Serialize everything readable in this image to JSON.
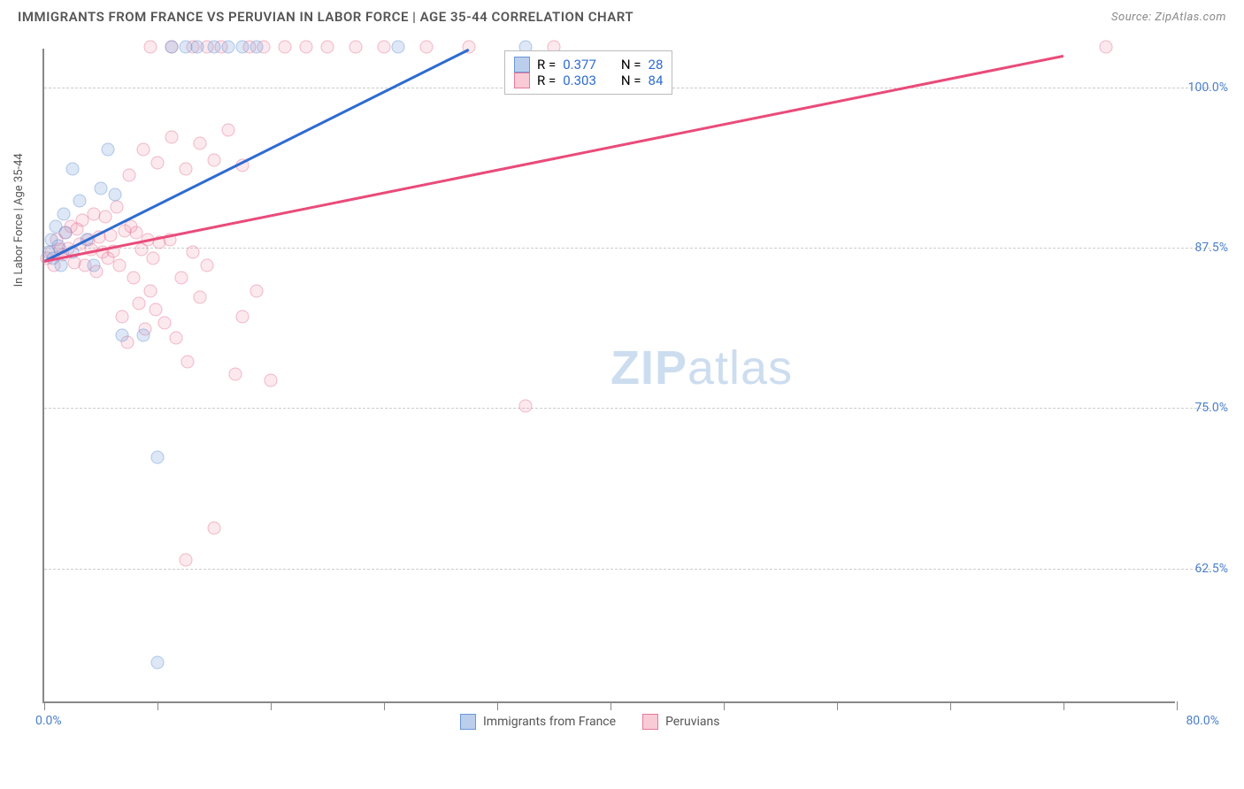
{
  "header": {
    "title": "IMMIGRANTS FROM FRANCE VS PERUVIAN IN LABOR FORCE | AGE 35-44 CORRELATION CHART",
    "source": "Source: ZipAtlas.com"
  },
  "chart": {
    "type": "scatter",
    "ylabel": "In Labor Force | Age 35-44",
    "x_min": 0,
    "x_max": 80,
    "y_min": 52,
    "y_max": 103,
    "x_start_label": "0.0%",
    "x_end_label": "80.0%",
    "grid_y": [
      {
        "v": 62.5,
        "label": "62.5%"
      },
      {
        "v": 75.0,
        "label": "75.0%"
      },
      {
        "v": 87.5,
        "label": "87.5%"
      },
      {
        "v": 100.0,
        "label": "100.0%"
      }
    ],
    "x_ticks": [
      0,
      8,
      16,
      24,
      32,
      40,
      48,
      56,
      64,
      72,
      80
    ],
    "watermark": {
      "zip": "ZIP",
      "rest": "atlas"
    },
    "series_blue": {
      "color_fill": "#78a0dc",
      "color_stroke": "#6a96d6",
      "trend": {
        "x1": 0,
        "y1": 86.5,
        "x2": 30,
        "y2": 103,
        "color": "#2e6bd0"
      },
      "points": [
        [
          0.3,
          87
        ],
        [
          0.5,
          88
        ],
        [
          0.6,
          86.5
        ],
        [
          0.8,
          89
        ],
        [
          1,
          87.5
        ],
        [
          1.2,
          86
        ],
        [
          1.4,
          90
        ],
        [
          1.5,
          88.5
        ],
        [
          2,
          87
        ],
        [
          2.5,
          91
        ],
        [
          3,
          88
        ],
        [
          3.5,
          86
        ],
        [
          4,
          92
        ],
        [
          5,
          91.5
        ],
        [
          2,
          93.5
        ],
        [
          5.5,
          80.5
        ],
        [
          7,
          80.5
        ],
        [
          8,
          55
        ],
        [
          8,
          71
        ],
        [
          4.5,
          95
        ],
        [
          9,
          103
        ],
        [
          10,
          103
        ],
        [
          10.8,
          103
        ],
        [
          12,
          103
        ],
        [
          13,
          103
        ],
        [
          14,
          103
        ],
        [
          15,
          103
        ],
        [
          25,
          103
        ],
        [
          34,
          103
        ]
      ]
    },
    "series_pink": {
      "color_fill": "#f08ca5",
      "color_stroke": "#e67a9a",
      "trend": {
        "x1": 0,
        "y1": 86.5,
        "x2": 72,
        "y2": 102.5,
        "color": "#e94b7a"
      },
      "points": [
        [
          0.2,
          86.5
        ],
        [
          0.5,
          87
        ],
        [
          0.7,
          86
        ],
        [
          0.9,
          88
        ],
        [
          1.1,
          87.2
        ],
        [
          1.3,
          86.8
        ],
        [
          1.5,
          88.5
        ],
        [
          1.7,
          87.3
        ],
        [
          1.9,
          89
        ],
        [
          2.1,
          86.2
        ],
        [
          2.3,
          88.8
        ],
        [
          2.5,
          87.6
        ],
        [
          2.7,
          89.5
        ],
        [
          2.9,
          86
        ],
        [
          3.1,
          88
        ],
        [
          3.3,
          87.2
        ],
        [
          3.5,
          90
        ],
        [
          3.7,
          85.5
        ],
        [
          3.9,
          88.2
        ],
        [
          4.1,
          87
        ],
        [
          4.3,
          89.8
        ],
        [
          4.5,
          86.5
        ],
        [
          4.7,
          88.3
        ],
        [
          4.9,
          87.1
        ],
        [
          5.1,
          90.5
        ],
        [
          5.3,
          86
        ],
        [
          5.5,
          82
        ],
        [
          5.7,
          88.7
        ],
        [
          5.9,
          80
        ],
        [
          6.1,
          89
        ],
        [
          6.3,
          85
        ],
        [
          6.5,
          88.5
        ],
        [
          6.7,
          83
        ],
        [
          6.9,
          87.2
        ],
        [
          7.1,
          81
        ],
        [
          7.3,
          88
        ],
        [
          7.5,
          84
        ],
        [
          7.7,
          86.5
        ],
        [
          7.9,
          82.5
        ],
        [
          8.1,
          87.8
        ],
        [
          8.5,
          81.5
        ],
        [
          8.9,
          88
        ],
        [
          9.3,
          80.3
        ],
        [
          9.7,
          85
        ],
        [
          10.1,
          78.5
        ],
        [
          10.5,
          87
        ],
        [
          11,
          83.5
        ],
        [
          11.5,
          86
        ],
        [
          10,
          63
        ],
        [
          12,
          65.5
        ],
        [
          13.5,
          77.5
        ],
        [
          14,
          82
        ],
        [
          15,
          84
        ],
        [
          16,
          77
        ],
        [
          6,
          93
        ],
        [
          7,
          95
        ],
        [
          8,
          94
        ],
        [
          9,
          96
        ],
        [
          10,
          93.5
        ],
        [
          11,
          95.5
        ],
        [
          12,
          94.2
        ],
        [
          13,
          96.5
        ],
        [
          14,
          93.8
        ],
        [
          7.5,
          103
        ],
        [
          9,
          103
        ],
        [
          10.5,
          103
        ],
        [
          11.5,
          103
        ],
        [
          12.5,
          103
        ],
        [
          14.5,
          103
        ],
        [
          15.5,
          103
        ],
        [
          17,
          103
        ],
        [
          18.5,
          103
        ],
        [
          20,
          103
        ],
        [
          22,
          103
        ],
        [
          24,
          103
        ],
        [
          27,
          103
        ],
        [
          30,
          103
        ],
        [
          34,
          75
        ],
        [
          36,
          103
        ],
        [
          75,
          103
        ]
      ]
    },
    "legend_top": {
      "rows": [
        {
          "swatch": "blue",
          "r_label": "R = ",
          "r_value": "0.377",
          "n_label": "N = ",
          "n_value": "28"
        },
        {
          "swatch": "pink",
          "r_label": "R = ",
          "r_value": "0.303",
          "n_label": "N = ",
          "n_value": "84"
        }
      ]
    },
    "legend_bottom": {
      "items": [
        {
          "swatch": "blue",
          "label": "Immigrants from France"
        },
        {
          "swatch": "pink",
          "label": "Peruvians"
        }
      ]
    }
  }
}
